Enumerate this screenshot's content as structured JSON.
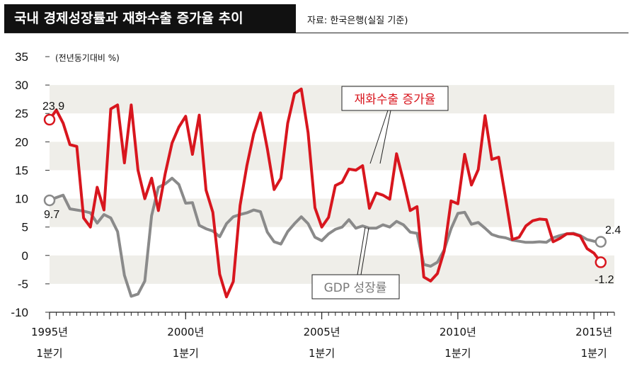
{
  "header": {
    "title": "국내 경제성장률과 재화수출 증가율 추이",
    "source": "자료: 한국은행(실질 기준)"
  },
  "chart_data": {
    "type": "line",
    "unit_label": "(전년동기대비 %)",
    "ylim": [
      -10,
      35
    ],
    "yticks": [
      35,
      30,
      25,
      20,
      15,
      10,
      5,
      0,
      -5,
      -10
    ],
    "grid": "alternating horizontal bands",
    "x_range": [
      1995.0,
      2015.75
    ],
    "xticks": [
      {
        "x": 1995.0,
        "line1": "1995년",
        "line2": "1분기"
      },
      {
        "x": 2000.0,
        "line1": "2000년",
        "line2": "1분기"
      },
      {
        "x": 2005.0,
        "line1": "2005년",
        "line2": "1분기"
      },
      {
        "x": 2010.0,
        "line1": "2010년",
        "line2": "1분기"
      },
      {
        "x": 2015.0,
        "line1": "2015년",
        "line2": "1분기"
      }
    ],
    "series": [
      {
        "name": "GDP 성장률",
        "color": "#8a8a8a",
        "x": [
          1995.0,
          1995.25,
          1995.5,
          1995.75,
          1996.0,
          1996.25,
          1996.5,
          1996.75,
          1997.0,
          1997.25,
          1997.5,
          1997.75,
          1998.0,
          1998.25,
          1998.5,
          1998.75,
          1999.0,
          1999.25,
          1999.5,
          1999.75,
          2000.0,
          2000.25,
          2000.5,
          2000.75,
          2001.0,
          2001.25,
          2001.5,
          2001.75,
          2002.0,
          2002.25,
          2002.5,
          2002.75,
          2003.0,
          2003.25,
          2003.5,
          2003.75,
          2004.0,
          2004.25,
          2004.5,
          2004.75,
          2005.0,
          2005.25,
          2005.5,
          2005.75,
          2006.0,
          2006.25,
          2006.5,
          2006.75,
          2007.0,
          2007.25,
          2007.5,
          2007.75,
          2008.0,
          2008.25,
          2008.5,
          2008.75,
          2009.0,
          2009.25,
          2009.5,
          2009.75,
          2010.0,
          2010.25,
          2010.5,
          2010.75,
          2011.0,
          2011.25,
          2011.5,
          2011.75,
          2012.0,
          2012.25,
          2012.5,
          2012.75,
          2013.0,
          2013.25,
          2013.5,
          2013.75,
          2014.0,
          2014.25,
          2014.5,
          2014.75,
          2015.0,
          2015.25
        ],
        "values": [
          9.7,
          10.2,
          10.6,
          8.2,
          8.0,
          7.8,
          7.5,
          5.7,
          7.2,
          6.6,
          4.2,
          -3.5,
          -7.2,
          -6.8,
          -4.5,
          7.0,
          12.0,
          12.6,
          13.6,
          12.5,
          9.2,
          9.3,
          5.3,
          4.7,
          4.3,
          3.3,
          5.6,
          6.8,
          7.2,
          7.5,
          8.0,
          7.7,
          4.1,
          2.4,
          2.0,
          4.2,
          5.6,
          6.8,
          5.6,
          3.2,
          2.6,
          3.8,
          4.6,
          5.0,
          6.3,
          4.8,
          5.2,
          4.8,
          4.8,
          5.4,
          5.0,
          6.0,
          5.4,
          4.1,
          3.9,
          -1.6,
          -1.9,
          -1.2,
          1.0,
          4.7,
          7.4,
          7.6,
          5.5,
          5.8,
          4.8,
          3.7,
          3.3,
          3.1,
          2.7,
          2.5,
          2.3,
          2.3,
          2.4,
          2.3,
          3.1,
          3.5,
          3.8,
          3.9,
          3.5,
          2.8,
          2.5,
          2.4
        ]
      },
      {
        "name": "재화수출 증가율",
        "color": "#d8161e",
        "x": [
          1995.0,
          1995.25,
          1995.5,
          1995.75,
          1996.0,
          1996.25,
          1996.5,
          1996.75,
          1997.0,
          1997.25,
          1997.5,
          1997.75,
          1998.0,
          1998.25,
          1998.5,
          1998.75,
          1999.0,
          1999.25,
          1999.5,
          1999.75,
          2000.0,
          2000.25,
          2000.5,
          2000.75,
          2001.0,
          2001.25,
          2001.5,
          2001.75,
          2002.0,
          2002.25,
          2002.5,
          2002.75,
          2003.0,
          2003.25,
          2003.5,
          2003.75,
          2004.0,
          2004.25,
          2004.5,
          2004.75,
          2005.0,
          2005.25,
          2005.5,
          2005.75,
          2006.0,
          2006.25,
          2006.5,
          2006.75,
          2007.0,
          2007.25,
          2007.5,
          2007.75,
          2008.0,
          2008.25,
          2008.5,
          2008.75,
          2009.0,
          2009.25,
          2009.5,
          2009.75,
          2010.0,
          2010.25,
          2010.5,
          2010.75,
          2011.0,
          2011.25,
          2011.5,
          2011.75,
          2012.0,
          2012.25,
          2012.5,
          2012.75,
          2013.0,
          2013.25,
          2013.5,
          2013.75,
          2014.0,
          2014.25,
          2014.5,
          2014.75,
          2015.0,
          2015.25
        ],
        "values": [
          23.9,
          25.6,
          23.3,
          19.5,
          19.2,
          6.6,
          5.0,
          12.0,
          8.0,
          25.8,
          26.5,
          16.3,
          26.5,
          15.0,
          10.0,
          13.6,
          7.9,
          14.4,
          19.8,
          22.6,
          24.5,
          17.8,
          24.7,
          11.5,
          7.6,
          -3.3,
          -7.3,
          -4.6,
          8.8,
          15.8,
          21.4,
          25.1,
          18.8,
          11.6,
          13.6,
          23.3,
          28.5,
          29.3,
          21.6,
          8.4,
          5.0,
          6.7,
          12.3,
          12.9,
          15.2,
          15.0,
          15.8,
          8.3,
          11.0,
          10.6,
          9.9,
          17.9,
          13.1,
          7.9,
          8.6,
          -3.8,
          -4.5,
          -3.2,
          0.8,
          9.6,
          9.1,
          17.8,
          12.4,
          15.1,
          24.6,
          16.9,
          17.3,
          10.2,
          2.8,
          3.2,
          5.2,
          6.1,
          6.4,
          6.3,
          2.4,
          3.0,
          3.8,
          3.8,
          3.4,
          1.2,
          0.4,
          -1.2
        ]
      }
    ],
    "annotations": {
      "first_export": "23.9",
      "first_gdp": "9.7",
      "last_gdp": "2.4",
      "last_export": "-1.2",
      "export_label": "재화수출 증가율",
      "gdp_label": "GDP 성장률"
    }
  }
}
